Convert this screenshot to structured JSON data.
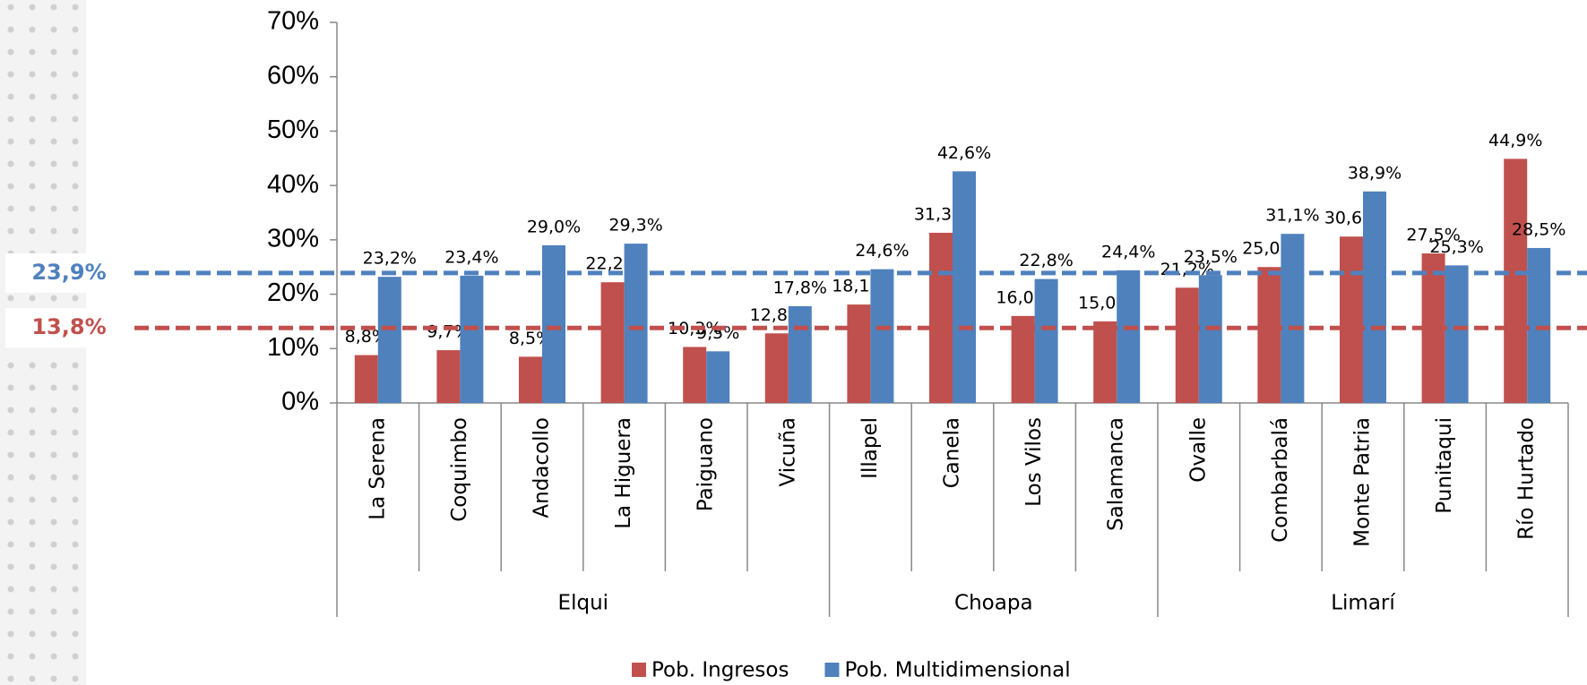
{
  "chart_data": {
    "type": "bar",
    "groups": [
      {
        "name": "Elqui",
        "categories": [
          "La Serena",
          "Coquimbo",
          "Andacollo",
          "La Higuera",
          "Paiguano",
          "Vicuña"
        ]
      },
      {
        "name": "Choapa",
        "categories": [
          "Illapel",
          "Canela",
          "Los Vilos",
          "Salamanca"
        ]
      },
      {
        "name": "Limarí",
        "categories": [
          "Ovalle",
          "Combarbalá",
          "Monte Patria",
          "Punitaqui",
          "Río Hurtado"
        ]
      }
    ],
    "series": [
      {
        "name": "Pob. Ingresos",
        "color": "#c0504d",
        "values": [
          8.8,
          9.7,
          8.5,
          22.2,
          10.3,
          12.8,
          18.1,
          31.3,
          16.0,
          15.0,
          21.2,
          25.0,
          30.6,
          27.5,
          44.9
        ],
        "value_labels": [
          "8,8%",
          "9,7%",
          "8,5%",
          "22,2%",
          "10,3%",
          "12,8%",
          "18,1%",
          "31,3%",
          "16,0%",
          "15,0%",
          "21,2%",
          "25,0%",
          "30,6%",
          "27,5%",
          "44,9%"
        ]
      },
      {
        "name": "Pob. Multidimensional",
        "color": "#4f81bd",
        "values": [
          23.2,
          23.4,
          29.0,
          29.3,
          9.5,
          17.8,
          24.6,
          42.6,
          22.8,
          24.4,
          23.5,
          31.1,
          38.9,
          25.3,
          28.5
        ],
        "value_labels": [
          "23,2%",
          "23,4%",
          "29,0%",
          "29,3%",
          "9,5%",
          "17,8%",
          "24,6%",
          "42,6%",
          "22,8%",
          "24,4%",
          "23,5%",
          "31,1%",
          "38,9%",
          "25,3%",
          "28,5%"
        ]
      }
    ],
    "reference_lines": [
      {
        "value": 23.9,
        "label": "23,9%",
        "color": "#4f81bd"
      },
      {
        "value": 13.8,
        "label": "13,8%",
        "color": "#c0504d"
      }
    ],
    "ylim": [
      0,
      70
    ],
    "yticks": [
      {
        "value": 0,
        "label": "0%"
      },
      {
        "value": 10,
        "label": "10%"
      },
      {
        "value": 20,
        "label": "20%"
      },
      {
        "value": 30,
        "label": "30%"
      },
      {
        "value": 40,
        "label": "40%"
      },
      {
        "value": 50,
        "label": "50%"
      },
      {
        "value": 60,
        "label": "60%"
      },
      {
        "value": 70,
        "label": "70%"
      }
    ],
    "legend": "bottom"
  }
}
